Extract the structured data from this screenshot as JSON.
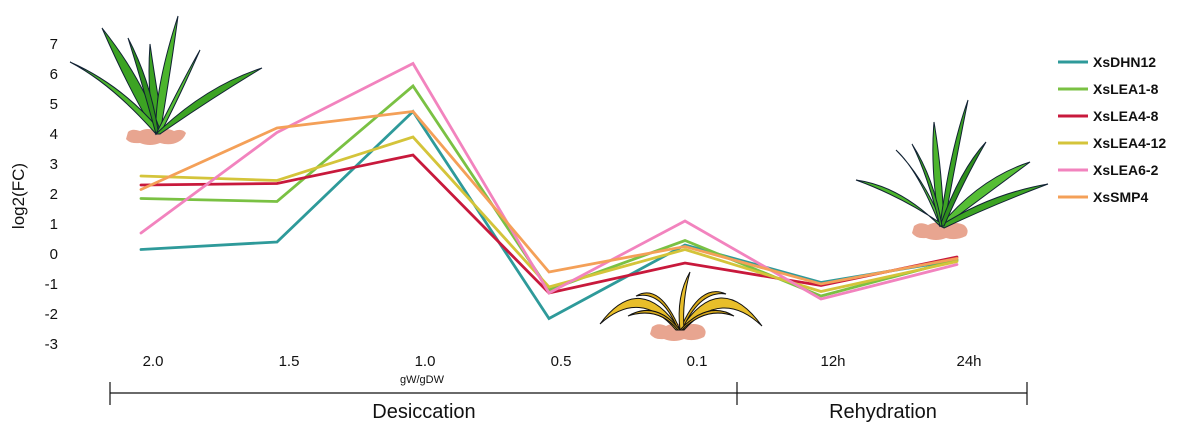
{
  "chart_data": {
    "type": "line",
    "ylabel": "log2(FC)",
    "xlabel": "gW/gDW",
    "categories": [
      "2.0",
      "1.5",
      "1.0",
      "0.5",
      "0.1",
      "12h",
      "24h"
    ],
    "ylim": [
      -3,
      7
    ],
    "yticks": [
      "7",
      "6",
      "5",
      "4",
      "3",
      "2",
      "1",
      "0",
      "-1",
      "-2",
      "-3"
    ],
    "series": [
      {
        "name": "XsDHN12",
        "color": "#2E9A9A",
        "values": [
          0.15,
          0.4,
          4.75,
          -2.15,
          0.3,
          -0.95,
          -0.2
        ]
      },
      {
        "name": "XsLEA1-8",
        "color": "#7AC143",
        "values": [
          1.85,
          1.75,
          5.6,
          -1.2,
          0.45,
          -1.4,
          -0.2
        ]
      },
      {
        "name": "XsLEA4-8",
        "color": "#C8193C",
        "values": [
          2.3,
          2.35,
          3.3,
          -1.3,
          -0.3,
          -1.05,
          -0.1
        ]
      },
      {
        "name": "XsLEA4-12",
        "color": "#D4C43A",
        "values": [
          2.6,
          2.45,
          3.9,
          -1.1,
          0.15,
          -1.25,
          -0.25
        ]
      },
      {
        "name": "XsLEA6-2",
        "color": "#F283BE",
        "values": [
          0.7,
          4.05,
          6.35,
          -1.3,
          1.1,
          -1.5,
          -0.35
        ]
      },
      {
        "name": "XsSMP4",
        "color": "#F4A058",
        "values": [
          2.15,
          4.2,
          4.75,
          -0.6,
          0.25,
          -1.0,
          -0.15
        ]
      }
    ],
    "sections": [
      {
        "label": "Desiccation"
      },
      {
        "label": "Rehydration"
      }
    ],
    "grid": false,
    "legend_position": "right"
  }
}
